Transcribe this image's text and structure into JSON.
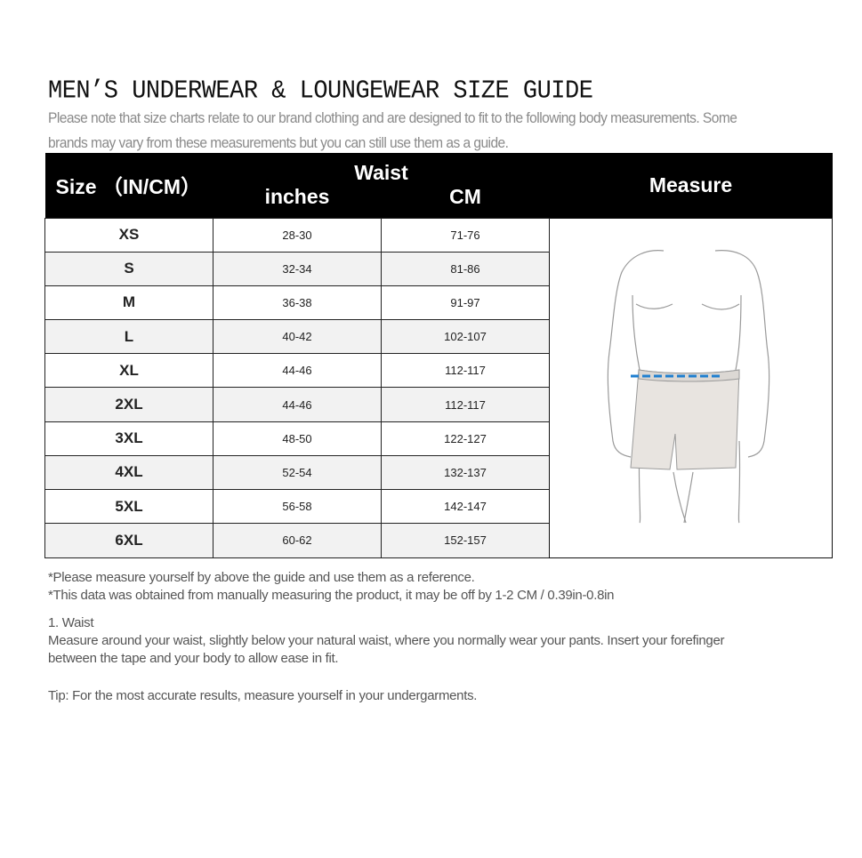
{
  "title": "MEN’S UNDERWEAR & LOUNGEWEAR SIZE GUIDE",
  "subtitle_lines": [
    "Please note that size charts relate to our brand clothing and are designed to fit to the following body measurements. Some",
    "brands may vary from these measurements but you can still use them as a guide."
  ],
  "table": {
    "headers": {
      "size": "Size （IN/CM）",
      "waist": "Waist",
      "inches": "inches",
      "cm": "CM",
      "measure": "Measure"
    },
    "rows": [
      {
        "size": "XS",
        "inches": "28-30",
        "cm": "71-76"
      },
      {
        "size": "S",
        "inches": "32-34",
        "cm": "81-86"
      },
      {
        "size": "M",
        "inches": "36-38",
        "cm": "91-97"
      },
      {
        "size": "L",
        "inches": "40-42",
        "cm": "102-107"
      },
      {
        "size": "XL",
        "inches": "44-46",
        "cm": "112-117"
      },
      {
        "size": "2XL",
        "inches": "44-46",
        "cm": "112-117"
      },
      {
        "size": "3XL",
        "inches": "48-50",
        "cm": "122-127"
      },
      {
        "size": "4XL",
        "inches": "52-54",
        "cm": "132-137"
      },
      {
        "size": "5XL",
        "inches": "56-58",
        "cm": "142-147"
      },
      {
        "size": "6XL",
        "inches": "60-62",
        "cm": "152-157"
      }
    ],
    "figure_icon": "waist-measure-body-illustration",
    "measure_line_color": "#1f7fd0"
  },
  "notes": {
    "note1": "*Please measure yourself by above the guide and use them as a reference.",
    "note2": "*This data was obtained from manually measuring the product, it may be off by 1-2 CM / 0.39in-0.8in",
    "waist_heading": "1. Waist",
    "waist_text_1": "Measure around your waist, slightly below your natural waist, where you normally wear your pants. Insert your forefinger",
    "waist_text_2": "between the tape and your body to allow ease in fit.",
    "tip": "Tip: For the most accurate results, measure yourself in your undergarments."
  }
}
